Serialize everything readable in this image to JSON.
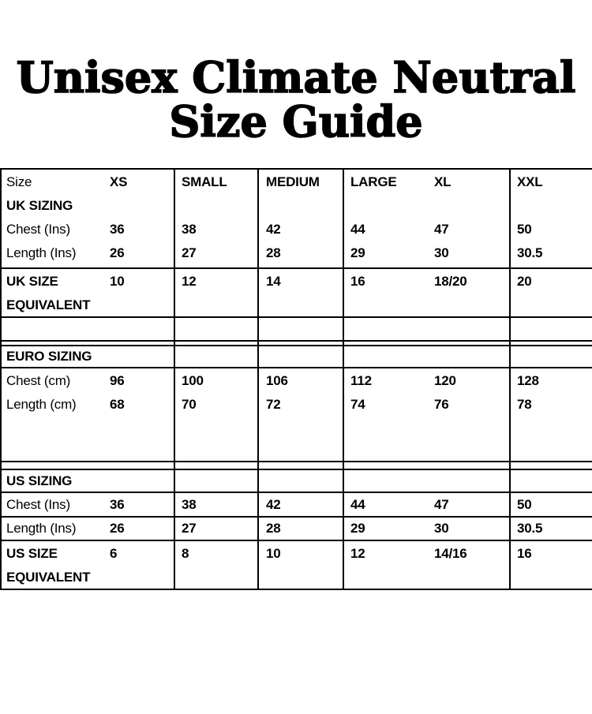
{
  "title": {
    "line1": "Unisex Climate Neutral",
    "line2": "Size Guide"
  },
  "table": {
    "lines": {
      "header": [
        "Size",
        "XS",
        "SMALL",
        "MEDIUM",
        "LARGE",
        "XL",
        "XXL"
      ],
      "uk_sizing_title": "UK SIZING",
      "uk_chest": [
        "Chest (Ins)",
        "36",
        "38",
        "42",
        "44",
        "47",
        "50"
      ],
      "uk_length": [
        "Length (Ins)",
        "26",
        "27",
        "28",
        "29",
        "30",
        "30.5"
      ],
      "uk_equiv_row1": [
        "UK SIZE",
        "10",
        "12",
        "14",
        "16",
        "18/20",
        "20"
      ],
      "uk_equiv_row2": "EQUIVALENT",
      "euro_sizing_title": "EURO SIZING",
      "euro_chest": [
        "Chest (cm)",
        "96",
        "100",
        "106",
        "112",
        "120",
        "128"
      ],
      "euro_length": [
        "Length (cm)",
        "68",
        "70",
        "72",
        "74",
        "76",
        "78"
      ],
      "us_sizing_title": "US SIZING",
      "us_chest": [
        "Chest (Ins)",
        "36",
        "38",
        "42",
        "44",
        "47",
        "50"
      ],
      "us_length": [
        "Length (Ins)",
        "26",
        "27",
        "28",
        "29",
        "30",
        "30.5"
      ],
      "us_equiv_row1": [
        "US SIZE",
        "6",
        "8",
        "10",
        "12",
        "14/16",
        "16"
      ],
      "us_equiv_row2": "EQUIVALENT"
    }
  }
}
